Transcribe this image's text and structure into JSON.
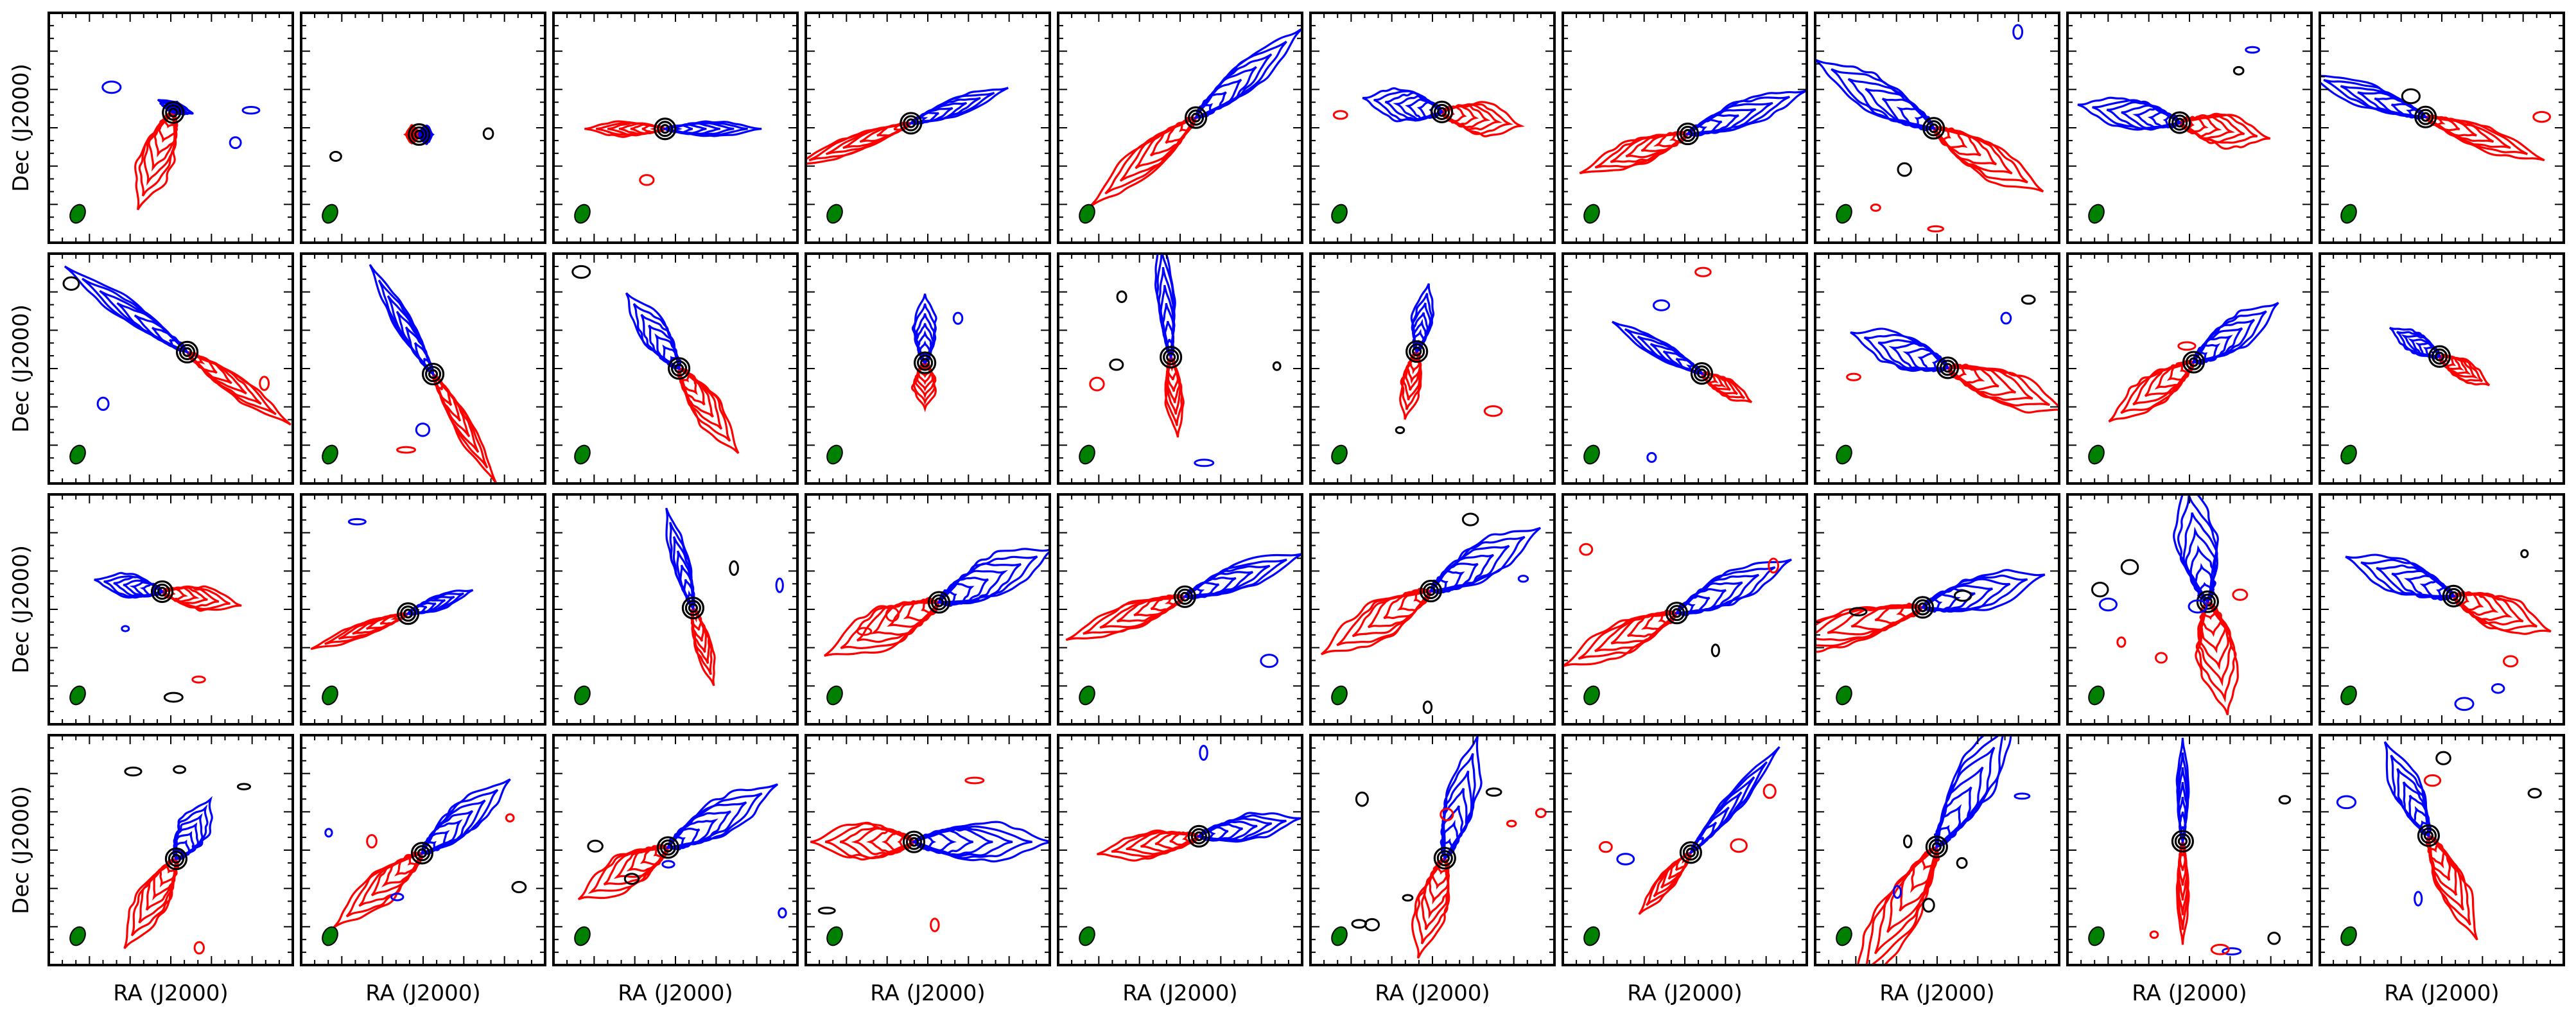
{
  "figure": {
    "rows": 4,
    "cols": 10,
    "x_label": "RA (J2000)",
    "y_label": "Dec (J2000)"
  },
  "colors": {
    "redshifted": "#ff0000",
    "blueshifted": "#0000ff",
    "continuum": "#000000",
    "beam": "#008000",
    "frame": "#000000",
    "background": "#ffffff"
  },
  "panels": [
    {
      "angle": 70,
      "red_len": 0.45,
      "blue_len": 0.05,
      "spread": 0.6,
      "noise": 3
    },
    {
      "angle": 0,
      "red_len": 0.06,
      "blue_len": 0.06,
      "spread": 0.3,
      "noise": 2
    },
    {
      "angle": 0,
      "red_len": 0.35,
      "blue_len": 0.42,
      "spread": 0.25,
      "noise": 1
    },
    {
      "angle": 20,
      "red_len": 0.55,
      "blue_len": 0.45,
      "spread": 0.3,
      "noise": 0
    },
    {
      "angle": 40,
      "red_len": 0.6,
      "blue_len": 0.6,
      "spread": 0.5,
      "noise": 0
    },
    {
      "angle": 170,
      "red_len": 0.35,
      "blue_len": 0.35,
      "spread": 0.55,
      "noise": 1
    },
    {
      "angle": 20,
      "red_len": 0.5,
      "blue_len": 0.55,
      "spread": 0.45,
      "noise": 0
    },
    {
      "angle": 150,
      "red_len": 0.55,
      "blue_len": 0.6,
      "spread": 0.6,
      "noise": 4
    },
    {
      "angle": 170,
      "red_len": 0.4,
      "blue_len": 0.45,
      "spread": 0.55,
      "noise": 2
    },
    {
      "angle": 160,
      "red_len": 0.55,
      "blue_len": 0.55,
      "spread": 0.4,
      "noise": 2
    },
    {
      "angle": 145,
      "red_len": 0.55,
      "blue_len": 0.65,
      "spread": 0.35,
      "noise": 3
    },
    {
      "angle": 120,
      "red_len": 0.55,
      "blue_len": 0.55,
      "spread": 0.3,
      "noise": 2
    },
    {
      "angle": 125,
      "red_len": 0.45,
      "blue_len": 0.4,
      "spread": 0.5,
      "noise": 1
    },
    {
      "angle": 90,
      "red_len": 0.2,
      "blue_len": 0.3,
      "spread": 0.4,
      "noise": 1
    },
    {
      "angle": 95,
      "red_len": 0.35,
      "blue_len": 0.55,
      "spread": 0.3,
      "noise": 5
    },
    {
      "angle": 80,
      "red_len": 0.3,
      "blue_len": 0.3,
      "spread": 0.35,
      "noise": 2
    },
    {
      "angle": 150,
      "red_len": 0.25,
      "blue_len": 0.45,
      "spread": 0.3,
      "noise": 3
    },
    {
      "angle": 160,
      "red_len": 0.55,
      "blue_len": 0.45,
      "spread": 0.6,
      "noise": 3
    },
    {
      "angle": 35,
      "red_len": 0.45,
      "blue_len": 0.45,
      "spread": 0.55,
      "noise": 1
    },
    {
      "angle": 150,
      "red_len": 0.25,
      "blue_len": 0.25,
      "spread": 0.35,
      "noise": 0
    },
    {
      "angle": 170,
      "red_len": 0.35,
      "blue_len": 0.3,
      "spread": 0.4,
      "noise": 3
    },
    {
      "angle": 20,
      "red_len": 0.45,
      "blue_len": 0.3,
      "spread": 0.25,
      "noise": 1
    },
    {
      "angle": 105,
      "red_len": 0.35,
      "blue_len": 0.45,
      "spread": 0.3,
      "noise": 2
    },
    {
      "angle": 25,
      "red_len": 0.55,
      "blue_len": 0.55,
      "spread": 0.7,
      "noise": 2
    },
    {
      "angle": 20,
      "red_len": 0.55,
      "blue_len": 0.55,
      "spread": 0.45,
      "noise": 1
    },
    {
      "angle": 30,
      "red_len": 0.55,
      "blue_len": 0.55,
      "spread": 0.65,
      "noise": 3
    },
    {
      "angle": 25,
      "red_len": 0.55,
      "blue_len": 0.55,
      "spread": 0.55,
      "noise": 3
    },
    {
      "angle": 15,
      "red_len": 0.75,
      "blue_len": 0.55,
      "spread": 0.6,
      "noise": 2
    },
    {
      "angle": 100,
      "red_len": 0.5,
      "blue_len": 0.55,
      "spread": 0.7,
      "noise": 7
    },
    {
      "angle": 160,
      "red_len": 0.45,
      "blue_len": 0.5,
      "spread": 0.6,
      "noise": 4
    },
    {
      "angle": 60,
      "red_len": 0.45,
      "blue_len": 0.3,
      "spread": 0.55,
      "noise": 4
    },
    {
      "angle": 40,
      "red_len": 0.5,
      "blue_len": 0.5,
      "spread": 0.55,
      "noise": 5
    },
    {
      "angle": 30,
      "red_len": 0.45,
      "blue_len": 0.55,
      "spread": 0.6,
      "noise": 4
    },
    {
      "angle": 0,
      "red_len": 0.45,
      "blue_len": 0.6,
      "spread": 0.65,
      "noise": 3
    },
    {
      "angle": 10,
      "red_len": 0.45,
      "blue_len": 0.45,
      "spread": 0.45,
      "noise": 1
    },
    {
      "angle": 75,
      "red_len": 0.45,
      "blue_len": 0.55,
      "spread": 0.55,
      "noise": 8
    },
    {
      "angle": 50,
      "red_len": 0.35,
      "blue_len": 0.6,
      "spread": 0.3,
      "noise": 4
    },
    {
      "angle": 60,
      "red_len": 0.75,
      "blue_len": 0.7,
      "spread": 0.7,
      "noise": 5
    },
    {
      "angle": 90,
      "red_len": 0.45,
      "blue_len": 0.45,
      "spread": 0.2,
      "noise": 5
    },
    {
      "angle": 115,
      "red_len": 0.5,
      "blue_len": 0.45,
      "spread": 0.5,
      "noise": 5
    }
  ]
}
